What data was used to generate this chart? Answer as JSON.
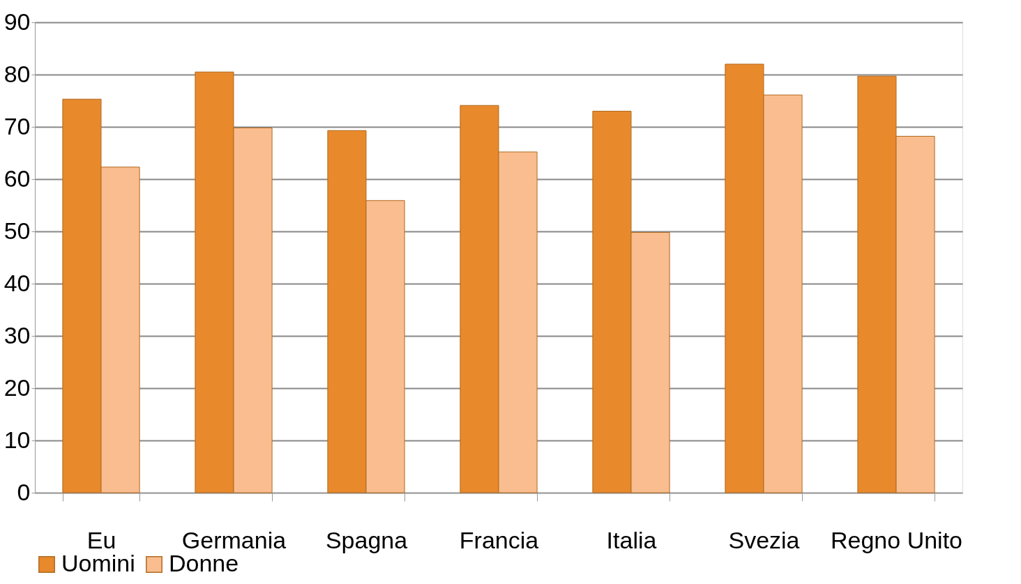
{
  "chart_data": {
    "type": "bar",
    "categories": [
      "Eu",
      "Germania",
      "Spagna",
      "Francia",
      "Italia",
      "Svezia",
      "Regno Unito"
    ],
    "series": [
      {
        "name": "Uomini",
        "color": "#e8892c",
        "values": [
          75.3,
          80.5,
          69.3,
          74.1,
          73.0,
          82.0,
          79.7
        ]
      },
      {
        "name": "Donne",
        "color": "#f9bd8f",
        "values": [
          62.3,
          69.8,
          55.9,
          65.2,
          49.8,
          76.1,
          68.2
        ]
      }
    ],
    "ylim": [
      0,
      90
    ],
    "yticks": [
      0,
      10,
      20,
      30,
      40,
      50,
      60,
      70,
      80,
      90
    ],
    "grid": "y",
    "legend": "bottom"
  }
}
